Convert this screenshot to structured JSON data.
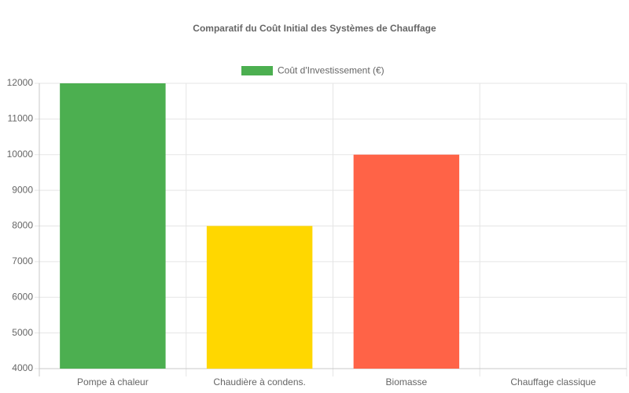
{
  "chart_data": {
    "type": "bar",
    "title": "Comparatif du Coût Initial des Systèmes de Chauffage",
    "categories": [
      "Pompe à chaleur",
      "Chaudière à condens.",
      "Biomasse",
      "Chauffage classique"
    ],
    "series": [
      {
        "name": "Coût d'Investissement (€)",
        "colors": [
          "#4CAF50",
          "#FFD700",
          "#FF6347",
          "#2196F3"
        ],
        "values": [
          12000,
          8000,
          10000,
          4000
        ]
      }
    ],
    "ylim": [
      4000,
      12000
    ],
    "yticks": [
      4000,
      5000,
      6000,
      7000,
      8000,
      9000,
      10000,
      11000,
      12000
    ],
    "grid": true,
    "legend": "top"
  }
}
